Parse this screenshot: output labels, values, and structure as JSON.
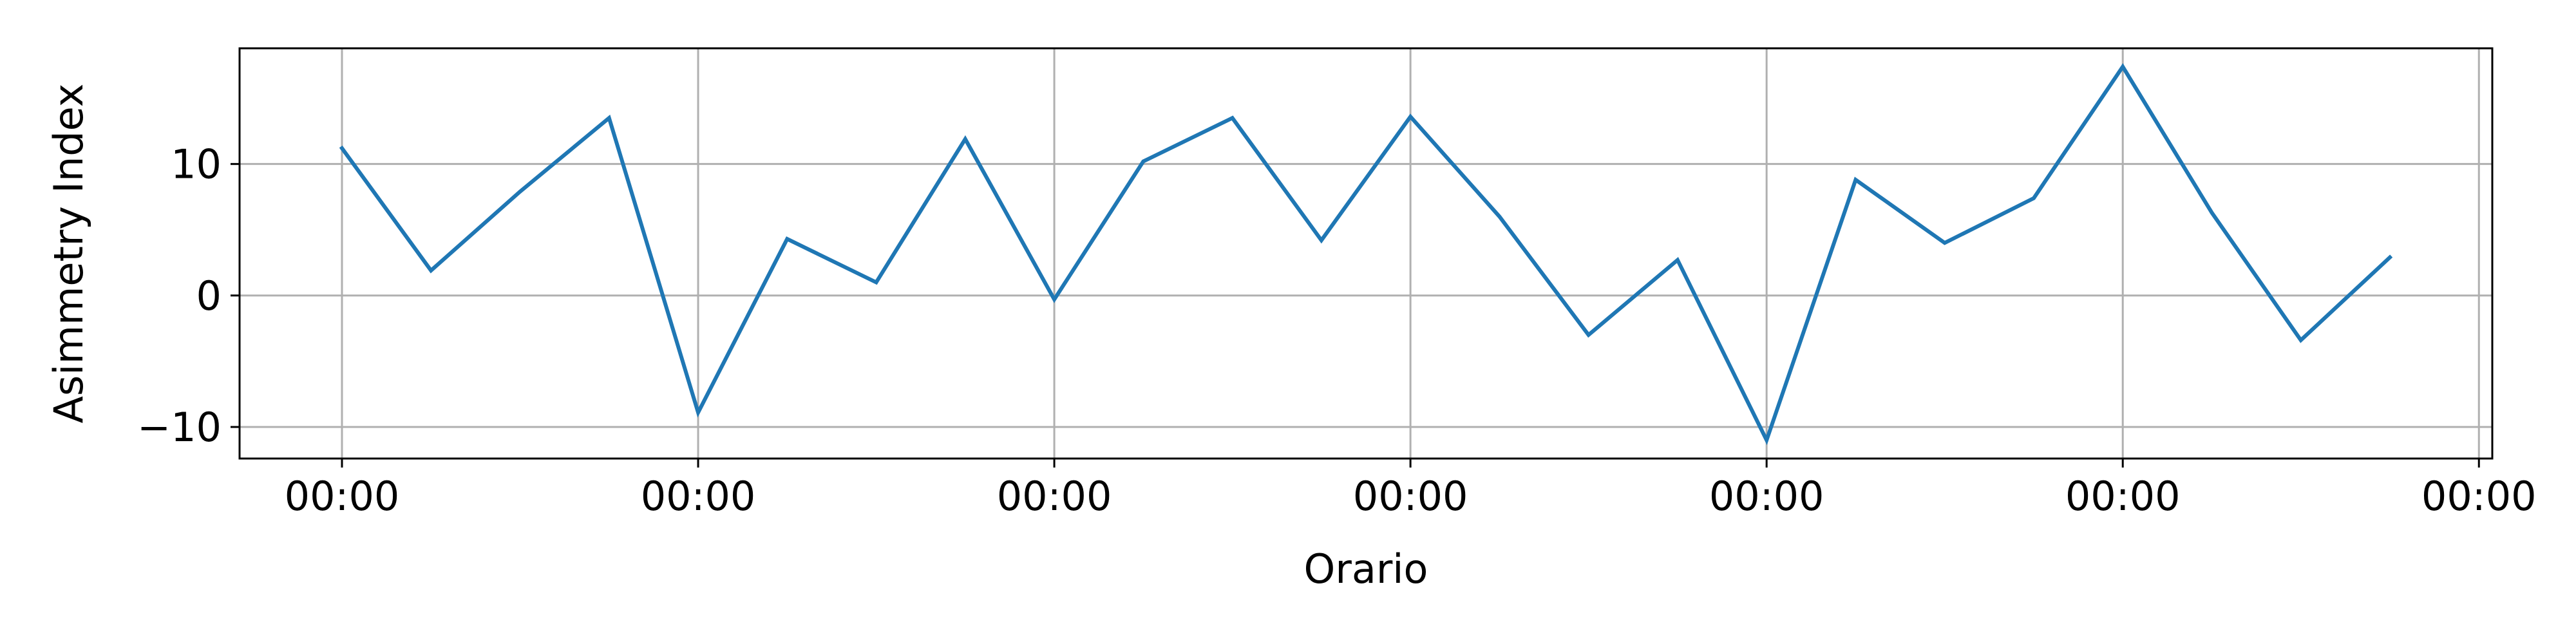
{
  "chart_data": {
    "type": "line",
    "title": "",
    "xlabel": "Orario",
    "ylabel": "Asimmetry Index",
    "x": [
      0,
      1,
      2,
      3,
      4,
      5,
      6,
      7,
      8,
      9,
      10,
      11,
      12,
      13,
      14,
      15,
      16,
      17,
      18,
      19,
      20,
      21,
      22,
      23
    ],
    "xlim": [
      -1.15,
      24.15
    ],
    "x_ticks": [
      0,
      4,
      8,
      12,
      16,
      20,
      24
    ],
    "x_tick_labels": [
      "00:00",
      "00:00",
      "00:00",
      "00:00",
      "00:00",
      "00:00",
      "00:00"
    ],
    "ylim": [
      -12.4,
      18.8
    ],
    "y_ticks": [
      -10,
      0,
      10
    ],
    "y_tick_labels": [
      "−10",
      "0",
      "10"
    ],
    "grid": true,
    "series": [
      {
        "values": [
          11.2,
          1.9,
          7.9,
          13.5,
          -8.9,
          4.3,
          1.0,
          11.9,
          -0.3,
          10.2,
          13.5,
          4.2,
          13.6,
          6.0,
          -3.0,
          2.7,
          -11.0,
          8.8,
          4.0,
          7.4,
          17.4,
          6.3,
          -3.4,
          2.9
        ],
        "color": "#1f77b4"
      }
    ]
  }
}
